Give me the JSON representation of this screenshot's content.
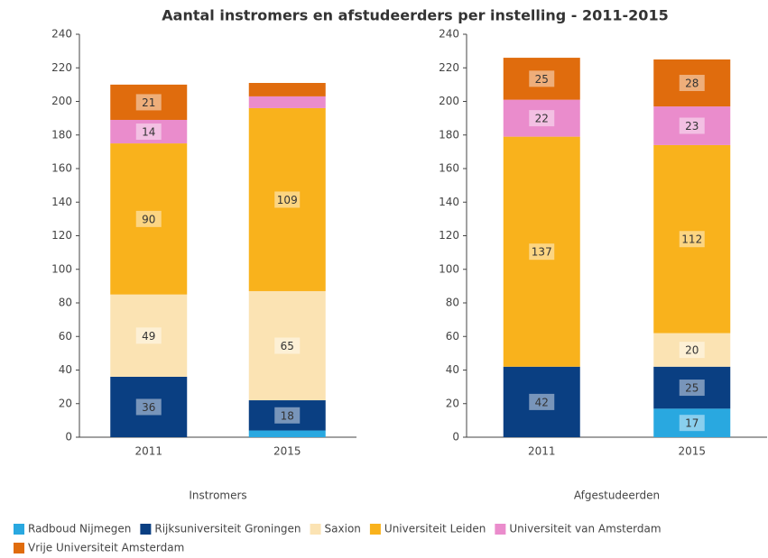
{
  "title": "Aantal instromers en afstudeerders per instelling - 2011-2015",
  "chart_data": [
    {
      "type": "stacked_bar",
      "xlabel": "Instromers",
      "categories": [
        "2011",
        "2015"
      ],
      "ylim": [
        0,
        240
      ],
      "yticks": [
        0,
        20,
        40,
        60,
        80,
        100,
        120,
        140,
        160,
        180,
        200,
        220,
        240
      ],
      "series": [
        {
          "name": "Radboud Nijmegen",
          "color": "#29a8e0",
          "values": [
            0,
            4
          ]
        },
        {
          "name": "Rijksuniversiteit Groningen",
          "color": "#0a3f82",
          "values": [
            36,
            18
          ]
        },
        {
          "name": "Saxion",
          "color": "#fbe3b3",
          "values": [
            49,
            65
          ]
        },
        {
          "name": "Universiteit Leiden",
          "color": "#f9b21c",
          "values": [
            90,
            109
          ]
        },
        {
          "name": "Universiteit van Amsterdam",
          "color": "#ea8ccc",
          "values": [
            14,
            7
          ]
        },
        {
          "name": "Vrije Universiteit Amsterdam",
          "color": "#e06c0d",
          "values": [
            21,
            8
          ]
        }
      ]
    },
    {
      "type": "stacked_bar",
      "xlabel": "Afgestudeerden",
      "categories": [
        "2011",
        "2015"
      ],
      "ylim": [
        0,
        240
      ],
      "yticks": [
        0,
        20,
        40,
        60,
        80,
        100,
        120,
        140,
        160,
        180,
        200,
        220,
        240
      ],
      "series": [
        {
          "name": "Radboud Nijmegen",
          "color": "#29a8e0",
          "values": [
            0,
            17
          ]
        },
        {
          "name": "Rijksuniversiteit Groningen",
          "color": "#0a3f82",
          "values": [
            42,
            25
          ]
        },
        {
          "name": "Saxion",
          "color": "#fbe3b3",
          "values": [
            0,
            20
          ]
        },
        {
          "name": "Universiteit Leiden",
          "color": "#f9b21c",
          "values": [
            137,
            112
          ]
        },
        {
          "name": "Universiteit van Amsterdam",
          "color": "#ea8ccc",
          "values": [
            22,
            23
          ]
        },
        {
          "name": "Vrije Universiteit Amsterdam",
          "color": "#e06c0d",
          "values": [
            25,
            28
          ]
        }
      ]
    }
  ]
}
